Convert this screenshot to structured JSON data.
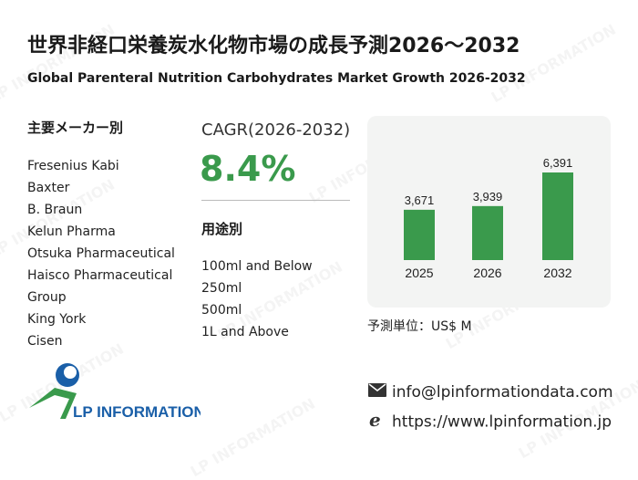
{
  "title_ja": "世界非経口栄養炭水化物市場の成長予測2026～2032",
  "title_en": "Global Parenteral Nutrition Carbohydrates Market Growth 2026-2032",
  "players": {
    "heading": "主要メーカー別",
    "items": [
      "Fresenius Kabi",
      "Baxter",
      "B. Braun",
      "Kelun Pharma",
      "Otsuka Pharmaceutical",
      "Haisco Pharmaceutical",
      "Group",
      "King York",
      "Cisen"
    ]
  },
  "cagr": {
    "label": "CAGR(2026-2032)",
    "value": "8.4%"
  },
  "applications": {
    "heading": "用途別",
    "items": [
      "100ml and Below",
      "250ml",
      "500ml",
      "1L and Above"
    ]
  },
  "chart_data": {
    "type": "bar",
    "categories": [
      "2025",
      "2026",
      "2032"
    ],
    "values": [
      3671,
      3939,
      6391
    ],
    "value_labels": [
      "3,671",
      "3,939",
      "6,391"
    ],
    "bar_color": "#3a9a4c",
    "grid": false
  },
  "unit_label": "予測単位：US$ M",
  "logo": {
    "text": "LP INFORMATION"
  },
  "contact": {
    "email": "info@lpinformationdata.com",
    "website": "https://www.lpinformation.jp"
  },
  "watermark_text": "LP INFORMATION",
  "colors": {
    "accent": "#3a9a4c",
    "logo_blue": "#1a5fa8",
    "panel_bg": "#f3f4f3"
  }
}
